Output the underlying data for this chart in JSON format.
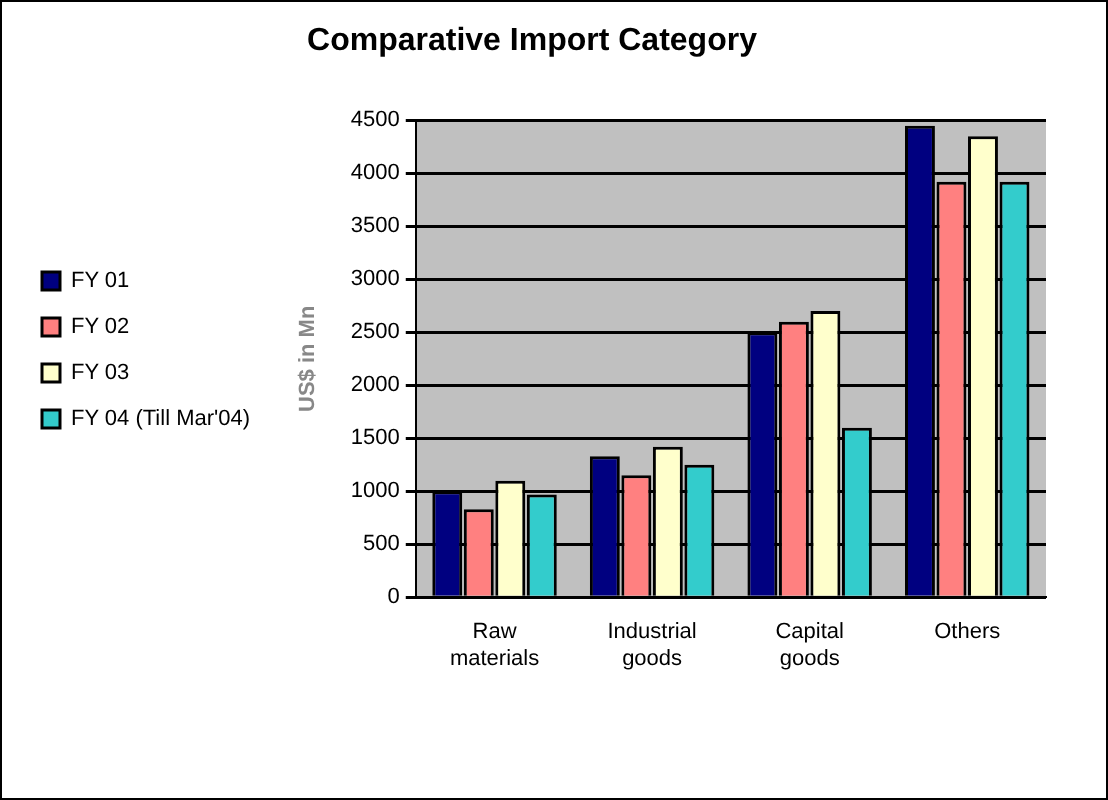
{
  "chart_data": {
    "type": "bar",
    "title": "Comparative Import Category",
    "ylabel": "US$ in Mn",
    "categories": [
      "Raw materials",
      "Industrial goods",
      "Capital goods",
      "Others"
    ],
    "series": [
      {
        "name": "FY 01",
        "color": "#000080",
        "values": [
          1000,
          1330,
          2500,
          4450
        ]
      },
      {
        "name": "FY 02",
        "color": "#ff8080",
        "values": [
          830,
          1150,
          2600,
          3920
        ]
      },
      {
        "name": "FY 03",
        "color": "#ffffcc",
        "values": [
          1100,
          1420,
          2700,
          4350
        ]
      },
      {
        "name": "FY 04 (Till Mar'04)",
        "color": "#33cccc",
        "values": [
          970,
          1250,
          1600,
          3920
        ]
      }
    ],
    "ylim": [
      0,
      4500
    ],
    "yticks": [
      0,
      500,
      1000,
      1500,
      2000,
      2500,
      3000,
      3500,
      4000,
      4500
    ],
    "grid": "y",
    "legend": "left"
  }
}
